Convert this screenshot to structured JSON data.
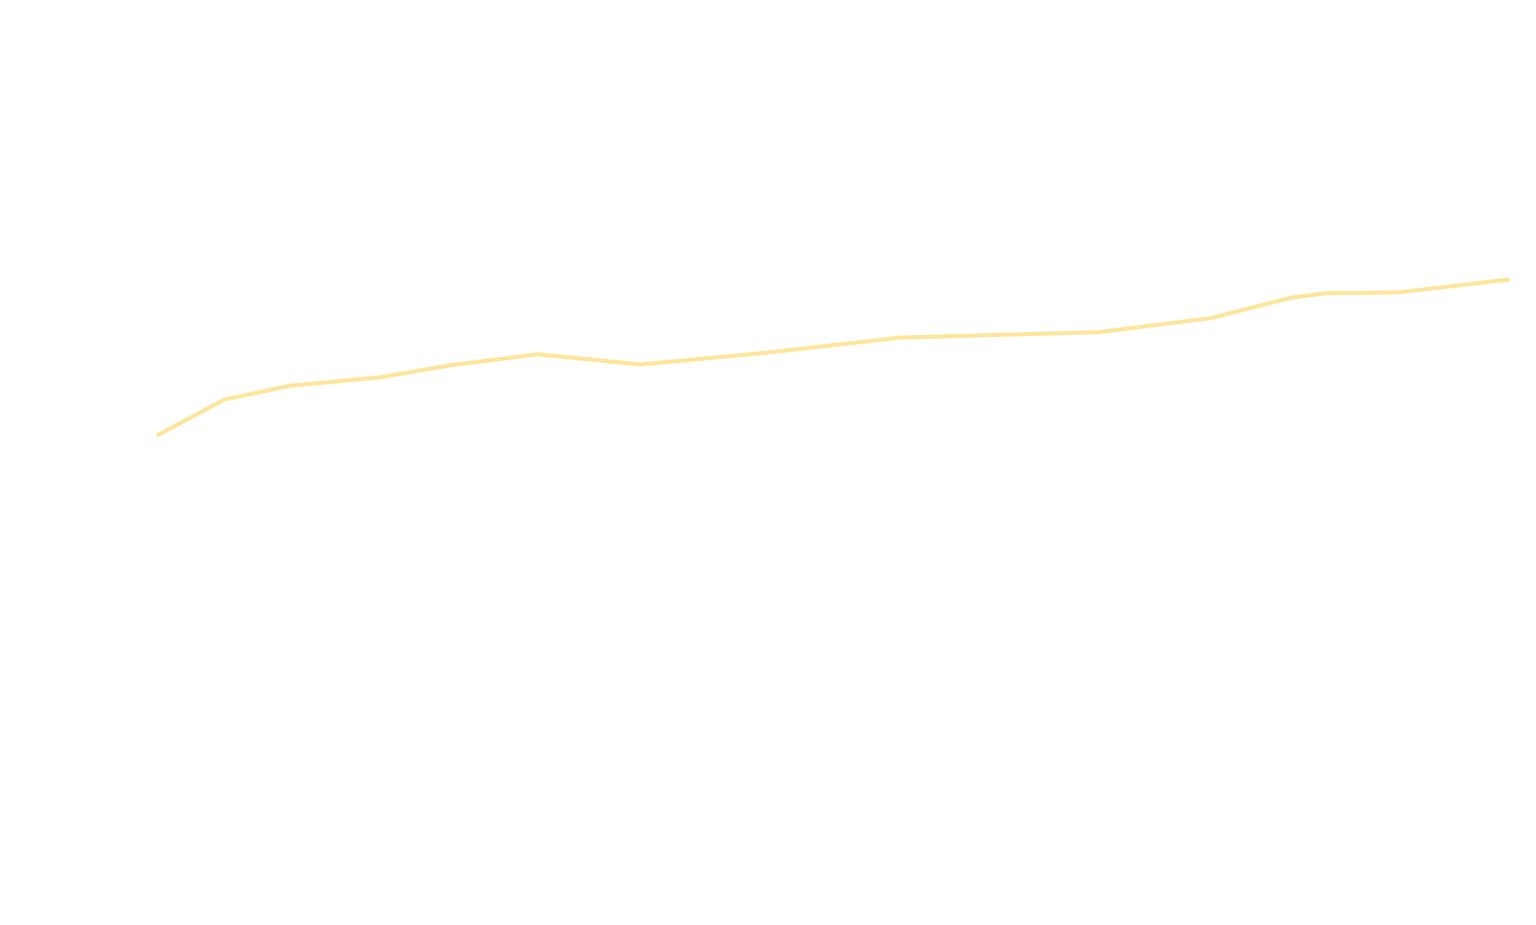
{
  "chart_data": {
    "type": "line",
    "x": [
      10.2,
      14.6,
      18.9,
      24.7,
      29.3,
      35.0,
      41.7,
      50.1,
      58.6,
      71.6,
      78.8,
      84.0,
      86.3,
      91.1,
      98.3
    ],
    "values": [
      52.9,
      56.8,
      58.3,
      59.2,
      60.5,
      61.7,
      60.6,
      61.9,
      63.5,
      64.1,
      65.6,
      67.8,
      68.3,
      68.4,
      69.8
    ],
    "color": "#fde59a",
    "xlim": [
      0,
      100
    ],
    "ylim": [
      0,
      100
    ]
  }
}
